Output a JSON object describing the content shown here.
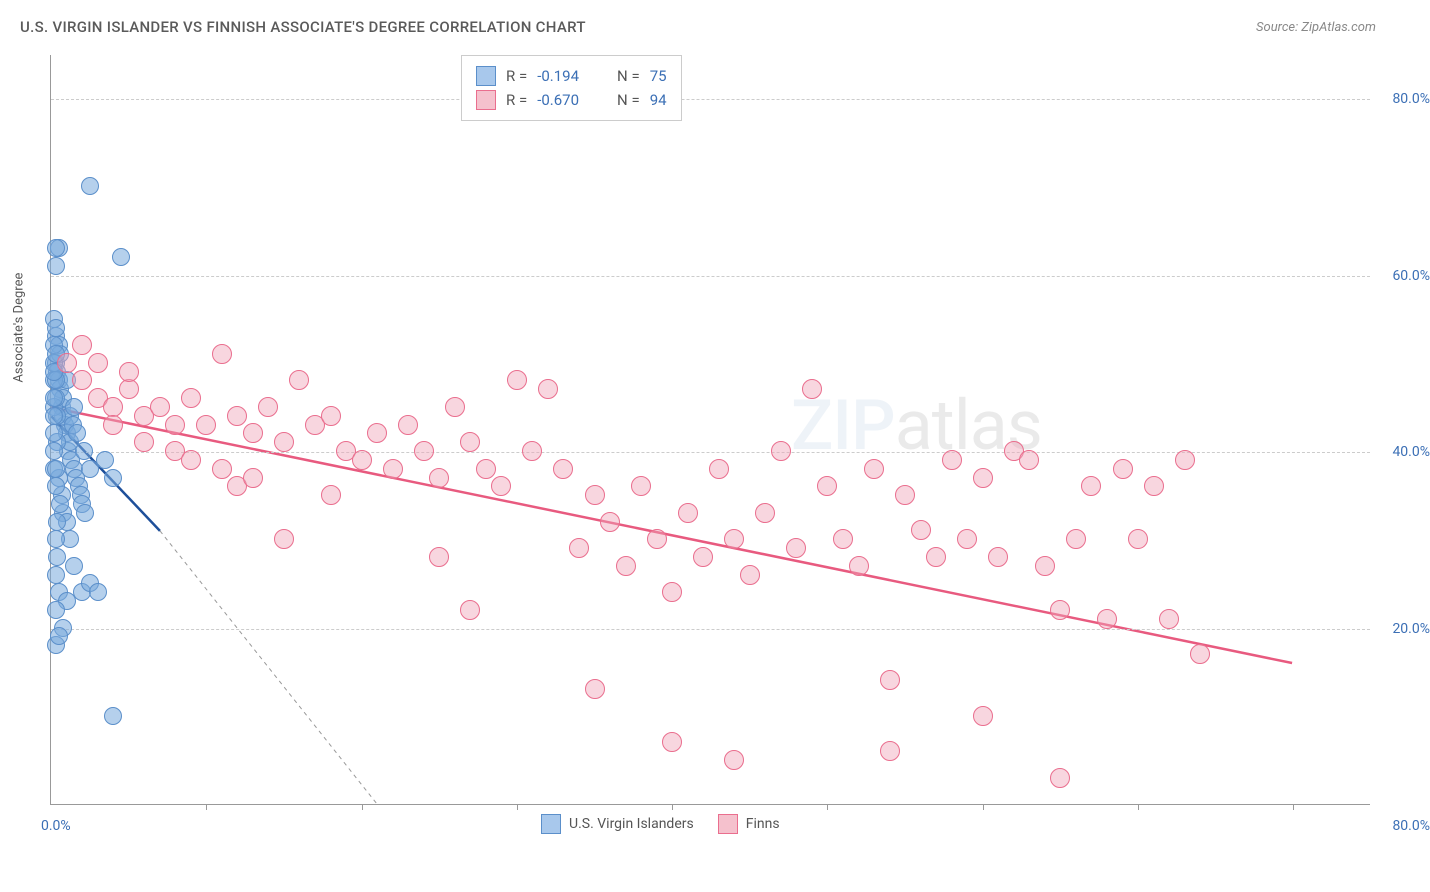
{
  "title": "U.S. VIRGIN ISLANDER VS FINNISH ASSOCIATE'S DEGREE CORRELATION CHART",
  "source": "Source: ZipAtlas.com",
  "watermark": {
    "part1": "ZIP",
    "part2": "atlas"
  },
  "yaxis": {
    "title": "Associate's Degree",
    "min": 0,
    "max": 85,
    "gridlines": [
      20,
      40,
      60,
      80
    ],
    "tick_labels": [
      "20.0%",
      "40.0%",
      "60.0%",
      "80.0%"
    ],
    "grid_color": "#cccccc",
    "label_color": "#3b6fb5",
    "label_fontsize": 14
  },
  "xaxis": {
    "min": 0,
    "max": 85,
    "left_label": "0.0%",
    "right_label": "80.0%",
    "tick_positions": [
      10,
      20,
      30,
      40,
      50,
      60,
      70,
      80
    ],
    "label_color": "#3b6fb5"
  },
  "legend_top": {
    "rows": [
      {
        "color_fill": "#a8c8ec",
        "color_border": "#5b8fca",
        "r_label": "R =",
        "r_value": "-0.194",
        "n_label": "N =",
        "n_value": "75"
      },
      {
        "color_fill": "#f5c1cd",
        "color_border": "#ea6e8e",
        "r_label": "R =",
        "r_value": "-0.670",
        "n_label": "N =",
        "n_value": "94"
      }
    ]
  },
  "legend_bottom": {
    "items": [
      {
        "color_fill": "#a8c8ec",
        "color_border": "#5b8fca",
        "label": "U.S. Virgin Islanders"
      },
      {
        "color_fill": "#f5c1cd",
        "color_border": "#ea6e8e",
        "label": "Finns"
      }
    ]
  },
  "series": [
    {
      "name": "usvi",
      "point_fill": "rgba(120,170,220,0.55)",
      "point_stroke": "#5b8fca",
      "point_radius": 9,
      "trend": {
        "x1": 0,
        "y1": 44,
        "x2": 7,
        "y2": 31,
        "extend_x": 21,
        "extend_y": 0,
        "color": "#1e4f9a",
        "width": 2.5,
        "dash_color": "#999"
      },
      "points": [
        [
          0.3,
          53
        ],
        [
          0.3,
          50
        ],
        [
          0.4,
          49
        ],
        [
          0.5,
          52
        ],
        [
          0.5,
          48
        ],
        [
          0.6,
          47
        ],
        [
          0.6,
          51
        ],
        [
          0.7,
          45
        ],
        [
          0.8,
          44
        ],
        [
          0.8,
          46
        ],
        [
          0.9,
          43
        ],
        [
          1.0,
          42
        ],
        [
          1.0,
          48
        ],
        [
          1.1,
          40
        ],
        [
          1.2,
          41
        ],
        [
          1.2,
          44
        ],
        [
          1.3,
          39
        ],
        [
          1.4,
          43
        ],
        [
          1.5,
          38
        ],
        [
          1.5,
          45
        ],
        [
          1.6,
          37
        ],
        [
          1.7,
          42
        ],
        [
          1.8,
          36
        ],
        [
          1.9,
          35
        ],
        [
          2.0,
          34
        ],
        [
          2.1,
          40
        ],
        [
          2.2,
          33
        ],
        [
          2.5,
          38
        ],
        [
          0.5,
          37
        ],
        [
          0.7,
          35
        ],
        [
          0.8,
          33
        ],
        [
          1.0,
          32
        ],
        [
          1.2,
          30
        ],
        [
          0.3,
          30
        ],
        [
          0.4,
          28
        ],
        [
          2.0,
          24
        ],
        [
          2.5,
          25
        ],
        [
          3.0,
          24
        ],
        [
          1.5,
          27
        ],
        [
          0.3,
          26
        ],
        [
          0.5,
          24
        ],
        [
          1.0,
          23
        ],
        [
          0.3,
          22
        ],
        [
          0.8,
          20
        ],
        [
          0.3,
          18
        ],
        [
          0.5,
          19
        ],
        [
          4.0,
          10
        ],
        [
          0.5,
          63
        ],
        [
          0.3,
          63
        ],
        [
          0.3,
          61
        ],
        [
          2.5,
          70
        ],
        [
          4.5,
          62
        ],
        [
          3.5,
          39
        ],
        [
          4.0,
          37
        ],
        [
          0.2,
          55
        ],
        [
          0.3,
          54
        ],
        [
          0.2,
          45
        ],
        [
          0.4,
          41
        ],
        [
          0.2,
          38
        ],
        [
          0.3,
          36
        ],
        [
          0.4,
          32
        ],
        [
          0.6,
          34
        ],
        [
          0.2,
          48
        ],
        [
          0.3,
          46
        ],
        [
          0.4,
          44
        ],
        [
          0.2,
          42
        ],
        [
          0.2,
          40
        ],
        [
          0.3,
          38
        ],
        [
          0.2,
          50
        ],
        [
          0.3,
          48
        ],
        [
          0.2,
          46
        ],
        [
          0.2,
          44
        ],
        [
          0.2,
          52
        ],
        [
          0.3,
          51
        ],
        [
          0.2,
          49
        ]
      ]
    },
    {
      "name": "finns",
      "point_fill": "rgba(240,165,185,0.45)",
      "point_stroke": "#ea6e8e",
      "point_radius": 10,
      "trend": {
        "x1": 0,
        "y1": 45,
        "x2": 80,
        "y2": 16,
        "color": "#e85a7f",
        "width": 2.5
      },
      "points": [
        [
          2,
          48
        ],
        [
          3,
          46
        ],
        [
          4,
          45
        ],
        [
          5,
          47
        ],
        [
          6,
          44
        ],
        [
          7,
          45
        ],
        [
          8,
          43
        ],
        [
          9,
          46
        ],
        [
          10,
          43
        ],
        [
          11,
          51
        ],
        [
          12,
          44
        ],
        [
          13,
          42
        ],
        [
          14,
          45
        ],
        [
          15,
          41
        ],
        [
          16,
          48
        ],
        [
          17,
          43
        ],
        [
          18,
          44
        ],
        [
          19,
          40
        ],
        [
          20,
          39
        ],
        [
          21,
          42
        ],
        [
          22,
          38
        ],
        [
          23,
          43
        ],
        [
          24,
          40
        ],
        [
          25,
          37
        ],
        [
          26,
          45
        ],
        [
          27,
          41
        ],
        [
          28,
          38
        ],
        [
          29,
          36
        ],
        [
          30,
          48
        ],
        [
          31,
          40
        ],
        [
          32,
          47
        ],
        [
          33,
          38
        ],
        [
          34,
          29
        ],
        [
          35,
          35
        ],
        [
          36,
          32
        ],
        [
          37,
          27
        ],
        [
          38,
          36
        ],
        [
          39,
          30
        ],
        [
          40,
          24
        ],
        [
          41,
          33
        ],
        [
          42,
          28
        ],
        [
          43,
          38
        ],
        [
          44,
          30
        ],
        [
          45,
          26
        ],
        [
          46,
          33
        ],
        [
          47,
          40
        ],
        [
          48,
          29
        ],
        [
          49,
          47
        ],
        [
          50,
          36
        ],
        [
          51,
          30
        ],
        [
          52,
          27
        ],
        [
          53,
          38
        ],
        [
          54,
          14
        ],
        [
          55,
          35
        ],
        [
          56,
          31
        ],
        [
          57,
          28
        ],
        [
          58,
          39
        ],
        [
          59,
          30
        ],
        [
          60,
          37
        ],
        [
          61,
          28
        ],
        [
          62,
          40
        ],
        [
          63,
          39
        ],
        [
          64,
          27
        ],
        [
          65,
          22
        ],
        [
          66,
          30
        ],
        [
          67,
          36
        ],
        [
          68,
          21
        ],
        [
          69,
          38
        ],
        [
          70,
          30
        ],
        [
          71,
          36
        ],
        [
          72,
          21
        ],
        [
          73,
          39
        ],
        [
          74,
          17
        ],
        [
          60,
          10
        ],
        [
          44,
          5
        ],
        [
          40,
          7
        ],
        [
          65,
          3
        ],
        [
          54,
          6
        ],
        [
          35,
          13
        ],
        [
          27,
          22
        ],
        [
          25,
          28
        ],
        [
          18,
          35
        ],
        [
          15,
          30
        ],
        [
          12,
          36
        ],
        [
          8,
          40
        ],
        [
          5,
          49
        ],
        [
          3,
          50
        ],
        [
          2,
          52
        ],
        [
          1,
          50
        ],
        [
          4,
          43
        ],
        [
          6,
          41
        ],
        [
          9,
          39
        ],
        [
          11,
          38
        ],
        [
          13,
          37
        ]
      ]
    }
  ],
  "background_color": "#ffffff"
}
